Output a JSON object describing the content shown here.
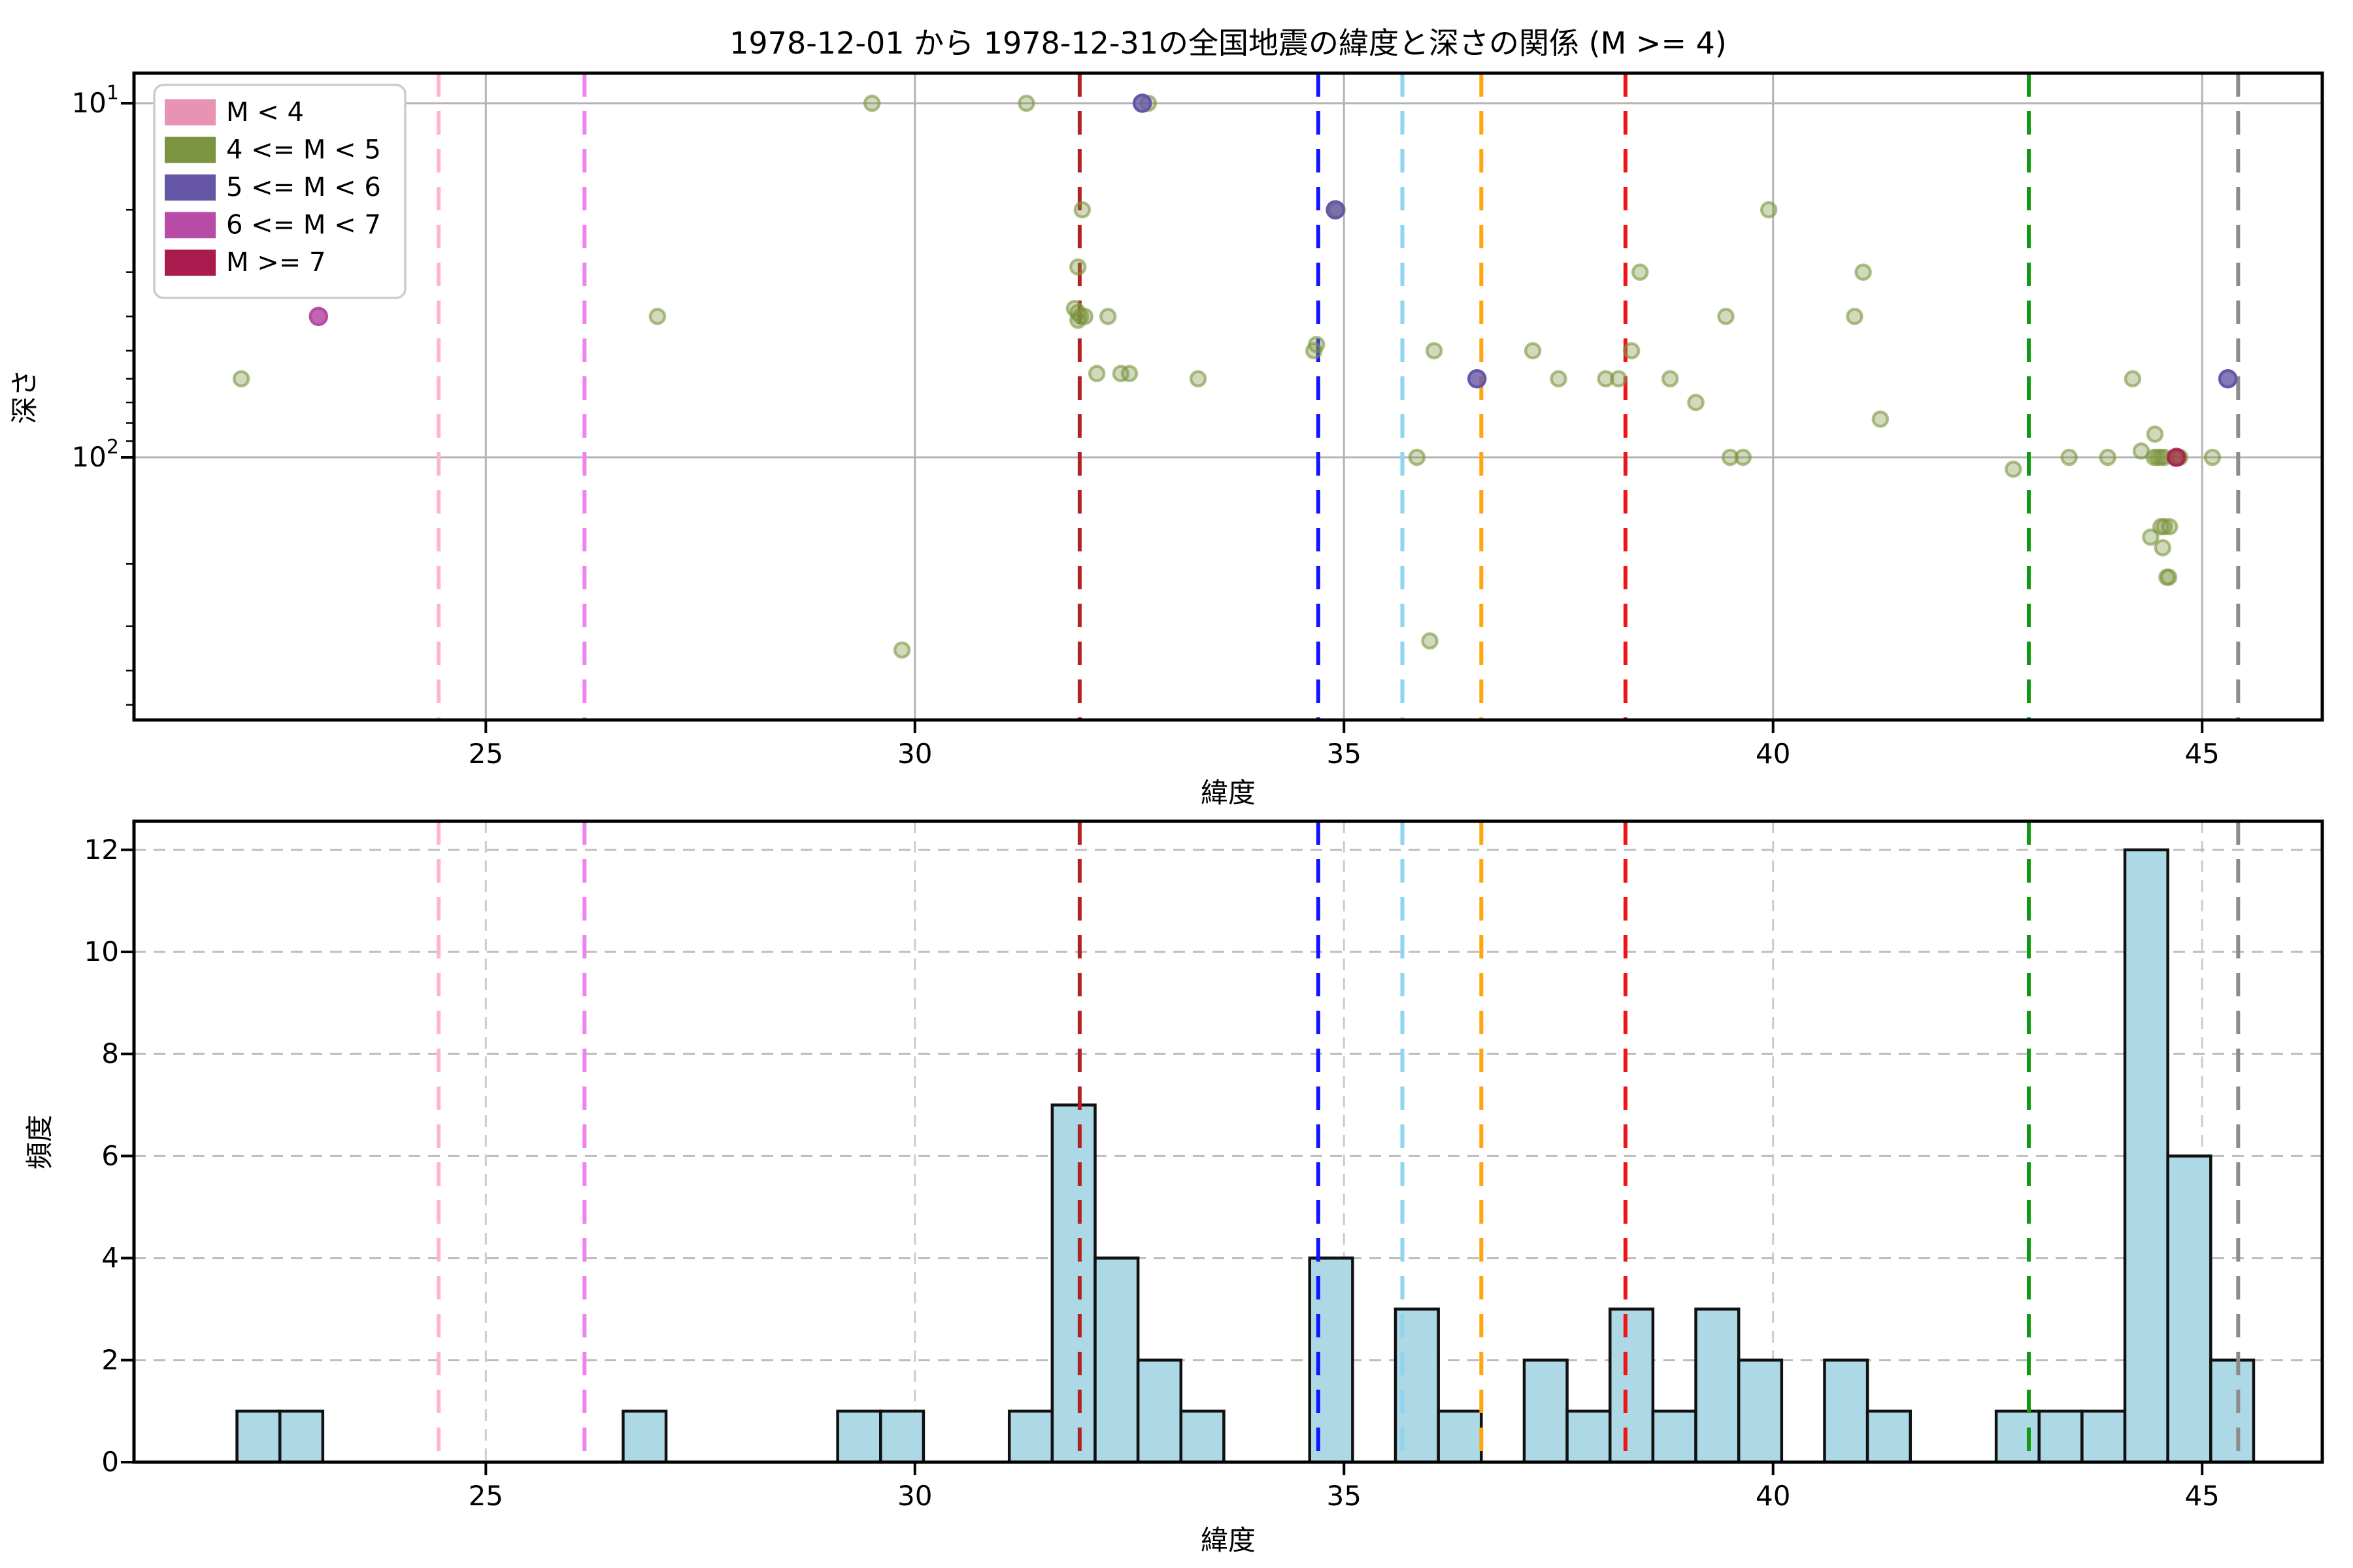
{
  "title": "1978-12-01 から 1978-12-31の全国地震の緯度と深さの関係 (M >= 4)",
  "legend": {
    "entries": [
      {
        "label": "M < 4",
        "color": "#e892b4"
      },
      {
        "label": "4 <= M < 5",
        "color": "#7b9440"
      },
      {
        "label": "5 <= M < 6",
        "color": "#6657a6"
      },
      {
        "label": "6 <= M < 7",
        "color": "#b84ba5"
      },
      {
        "label": "M >= 7",
        "color": "#ab1a4d"
      }
    ]
  },
  "axes": {
    "top": {
      "xlabel": "緯度",
      "ylabel": "深さ",
      "xticks": [
        25,
        30,
        35,
        40,
        45
      ],
      "yticks": [
        {
          "base": "10",
          "exp": "1",
          "value": 10
        },
        {
          "base": "10",
          "exp": "2",
          "value": 100
        }
      ],
      "minor_depth_ticks": [
        20,
        30,
        40,
        50,
        60,
        70,
        80,
        90,
        200,
        300,
        400,
        500
      ],
      "xlim": [
        20.9,
        46.4
      ],
      "ylim_depth": [
        8.2,
        552
      ]
    },
    "bottom": {
      "xlabel": "緯度",
      "ylabel": "頻度",
      "xticks": [
        25,
        30,
        35,
        40,
        45
      ],
      "yticks": [
        0,
        2,
        4,
        6,
        8,
        10,
        12
      ],
      "xlim": [
        20.9,
        46.4
      ],
      "ylim": [
        0,
        12.56
      ]
    }
  },
  "boundary_lines": [
    {
      "lat": 24.45,
      "color": "#ffb6c8",
      "name": "line-pink"
    },
    {
      "lat": 26.15,
      "color": "#ee82ee",
      "name": "line-violet"
    },
    {
      "lat": 31.92,
      "color": "#b22222",
      "name": "line-darkred"
    },
    {
      "lat": 34.7,
      "color": "#1414ff",
      "name": "line-blue"
    },
    {
      "lat": 35.68,
      "color": "#8fd4f0",
      "name": "line-skyblue"
    },
    {
      "lat": 36.6,
      "color": "#ffa510",
      "name": "line-orange"
    },
    {
      "lat": 38.28,
      "color": "#f01414",
      "name": "line-red"
    },
    {
      "lat": 42.98,
      "color": "#119911",
      "name": "line-green"
    },
    {
      "lat": 45.42,
      "color": "#8c8c8c",
      "name": "line-gray"
    }
  ],
  "chart_data": [
    {
      "type": "scatter",
      "ylabel": "深さ",
      "xlabel": "緯度",
      "y_scale": "log-inverted",
      "series": [
        {
          "name": "4 <= M < 5",
          "color": "#7b9440",
          "fill_alpha": 0.35,
          "points": [
            [
              22.15,
              60
            ],
            [
              27.0,
              40
            ],
            [
              29.5,
              10
            ],
            [
              29.85,
              350
            ],
            [
              31.3,
              10
            ],
            [
              31.95,
              20
            ],
            [
              31.9,
              29
            ],
            [
              31.86,
              38
            ],
            [
              31.9,
              39
            ],
            [
              31.93,
              40
            ],
            [
              31.9,
              41
            ],
            [
              31.98,
              40
            ],
            [
              32.12,
              58
            ],
            [
              32.25,
              40
            ],
            [
              32.4,
              58
            ],
            [
              32.5,
              58
            ],
            [
              32.72,
              10
            ],
            [
              33.3,
              60
            ],
            [
              34.65,
              50
            ],
            [
              34.68,
              48
            ],
            [
              34.92,
              20
            ],
            [
              35.85,
              100
            ],
            [
              36.0,
              330
            ],
            [
              36.05,
              50
            ],
            [
              37.2,
              50
            ],
            [
              37.5,
              60
            ],
            [
              38.05,
              60
            ],
            [
              38.2,
              60
            ],
            [
              38.35,
              50
            ],
            [
              38.45,
              30
            ],
            [
              38.8,
              60
            ],
            [
              39.1,
              70
            ],
            [
              39.45,
              40
            ],
            [
              39.5,
              100
            ],
            [
              39.65,
              100
            ],
            [
              39.95,
              20
            ],
            [
              40.95,
              40
            ],
            [
              41.05,
              30
            ],
            [
              41.25,
              78
            ],
            [
              42.8,
              108
            ],
            [
              43.45,
              100
            ],
            [
              43.9,
              100
            ],
            [
              44.19,
              60
            ],
            [
              44.29,
              96
            ],
            [
              44.45,
              86
            ],
            [
              44.44,
              100
            ],
            [
              44.48,
              100
            ],
            [
              44.52,
              100
            ],
            [
              44.56,
              100
            ],
            [
              44.4,
              168
            ],
            [
              44.52,
              157
            ],
            [
              44.56,
              157
            ],
            [
              44.54,
              180
            ],
            [
              44.59,
              218
            ],
            [
              44.61,
              218
            ],
            [
              44.62,
              157
            ],
            [
              44.68,
              100
            ],
            [
              44.72,
              100
            ],
            [
              44.74,
              100
            ],
            [
              45.12,
              100
            ]
          ]
        },
        {
          "name": "5 <= M < 6",
          "color": "#6657a6",
          "fill_alpha": 0.8,
          "points": [
            [
              32.65,
              10
            ],
            [
              34.9,
              20
            ],
            [
              36.55,
              60
            ],
            [
              45.3,
              60
            ]
          ]
        },
        {
          "name": "6 <= M < 7",
          "color": "#b84ba5",
          "fill_alpha": 0.85,
          "points": [
            [
              23.05,
              40
            ]
          ]
        },
        {
          "name": "M >= 7",
          "color": "#ab1a4d",
          "fill_alpha": 0.6,
          "points": [
            [
              44.7,
              100
            ]
          ]
        }
      ]
    },
    {
      "type": "histogram",
      "xlabel": "緯度",
      "ylabel": "頻度",
      "bin_width": 0.5,
      "bar_fill": "#add8e6",
      "bar_edge": "#111111",
      "bars": [
        {
          "start": 22.1,
          "count": 1
        },
        {
          "start": 22.6,
          "count": 1
        },
        {
          "start": 26.6,
          "count": 1
        },
        {
          "start": 29.1,
          "count": 1
        },
        {
          "start": 29.6,
          "count": 1
        },
        {
          "start": 31.1,
          "count": 1
        },
        {
          "start": 31.6,
          "count": 7
        },
        {
          "start": 32.1,
          "count": 4
        },
        {
          "start": 32.6,
          "count": 2
        },
        {
          "start": 33.1,
          "count": 1
        },
        {
          "start": 34.6,
          "count": 4
        },
        {
          "start": 35.6,
          "count": 3
        },
        {
          "start": 36.1,
          "count": 1
        },
        {
          "start": 37.1,
          "count": 2
        },
        {
          "start": 37.6,
          "count": 1
        },
        {
          "start": 38.1,
          "count": 3
        },
        {
          "start": 38.6,
          "count": 1
        },
        {
          "start": 39.1,
          "count": 3
        },
        {
          "start": 39.6,
          "count": 2
        },
        {
          "start": 40.6,
          "count": 2
        },
        {
          "start": 41.1,
          "count": 1
        },
        {
          "start": 42.6,
          "count": 1
        },
        {
          "start": 43.1,
          "count": 1
        },
        {
          "start": 43.6,
          "count": 1
        },
        {
          "start": 44.1,
          "count": 12
        },
        {
          "start": 44.6,
          "count": 6
        },
        {
          "start": 45.1,
          "count": 2
        }
      ]
    }
  ],
  "style": {
    "grid_solid": "#b4b4b4",
    "grid_dashed": "#bdbdbd",
    "grid_vert_bottom": "#cccccc",
    "spine": "#000000",
    "legend_border": "#cccccc"
  }
}
